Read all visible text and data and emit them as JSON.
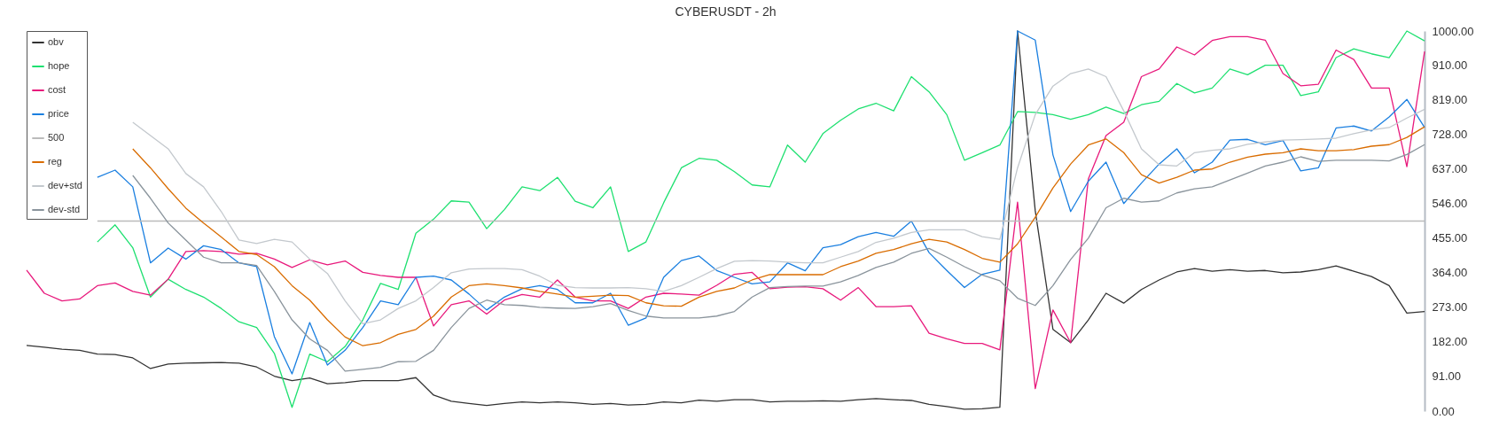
{
  "chart_data": {
    "type": "line",
    "title": "CYBERUSDT - 2h",
    "categories": [
      null,
      null,
      null,
      null,
      null,
      null,
      null,
      null,
      null,
      null,
      null,
      null,
      null,
      null,
      null,
      null,
      null,
      null,
      null,
      null,
      null,
      null,
      null,
      null,
      null,
      null,
      null,
      null,
      null,
      null,
      null,
      null,
      null,
      null,
      null,
      null,
      null,
      null,
      null,
      null,
      null,
      null,
      null,
      null,
      null,
      null,
      null,
      null,
      null,
      null,
      null,
      null,
      null,
      null,
      null,
      null,
      null,
      null,
      null,
      null,
      null,
      null,
      null,
      null,
      null,
      null,
      null,
      null,
      null,
      null,
      null,
      null,
      null,
      null,
      null,
      null,
      null,
      null,
      null,
      null
    ],
    "ylim": [
      0,
      1000
    ],
    "yticks": [
      {
        "value": 0,
        "label": "0.00"
      },
      {
        "value": 91,
        "label": "91.00"
      },
      {
        "value": 182,
        "label": "182.00"
      },
      {
        "value": 273,
        "label": "273.00"
      },
      {
        "value": 364,
        "label": "364.00"
      },
      {
        "value": 455,
        "label": "455.00"
      },
      {
        "value": 546,
        "label": "546.00"
      },
      {
        "value": 637,
        "label": "637.00"
      },
      {
        "value": 728,
        "label": "728.00"
      },
      {
        "value": 819,
        "label": "819.00"
      },
      {
        "value": 910,
        "label": "910.00"
      },
      {
        "value": 1000,
        "label": "1000.00"
      }
    ],
    "tick_labels": "y",
    "grid": false,
    "legend": "top left",
    "marker": "none",
    "line_style": "solid",
    "series": [
      {
        "name": "obv",
        "color": "#333333",
        "values": [
          173,
          168,
          163,
          160,
          150,
          149,
          140,
          112,
          124,
          126,
          127,
          128,
          126,
          116,
          92,
          80,
          87,
          72,
          75,
          80,
          80,
          80,
          88,
          42,
          26,
          20,
          15,
          20,
          24,
          22,
          24,
          22,
          18,
          20,
          16,
          18,
          24,
          22,
          29,
          26,
          30,
          30,
          24,
          26,
          26,
          27,
          26,
          30,
          33,
          30,
          28,
          18,
          12,
          5,
          6,
          10,
          1000,
          527,
          215,
          180,
          240,
          310,
          284,
          320,
          345,
          366,
          375,
          368,
          372,
          368,
          370,
          364,
          366,
          372,
          382,
          368,
          354,
          330,
          258,
          262
        ]
      },
      {
        "name": "hope",
        "color": "#1ee070",
        "values": [
          null,
          null,
          null,
          null,
          445,
          490,
          430,
          300,
          347,
          320,
          300,
          270,
          235,
          220,
          152,
          10,
          150,
          130,
          170,
          240,
          336,
          320,
          468,
          505,
          553,
          550,
          480,
          530,
          590,
          580,
          615,
          552,
          535,
          590,
          420,
          445,
          548,
          640,
          665,
          660,
          630,
          595,
          590,
          700,
          655,
          730,
          765,
          795,
          810,
          790,
          880,
          840,
          780,
          660,
          680,
          700,
          788,
          786,
          780,
          768,
          780,
          800,
          783,
          806,
          815,
          862,
          837,
          850,
          900,
          885,
          910,
          910,
          830,
          840,
          930,
          953,
          940,
          930,
          1000,
          974
        ]
      },
      {
        "name": "cost",
        "color": "#e8197c",
        "values": [
          371,
          310,
          290,
          295,
          330,
          337,
          315,
          305,
          347,
          420,
          422,
          420,
          413,
          415,
          400,
          378,
          398,
          385,
          395,
          365,
          357,
          352,
          352,
          224,
          280,
          290,
          255,
          292,
          307,
          300,
          345,
          300,
          290,
          290,
          270,
          300,
          310,
          308,
          305,
          331,
          360,
          365,
          322,
          326,
          327,
          322,
          292,
          325,
          275,
          275,
          277,
          205,
          190,
          178,
          178,
          161,
          550,
          59,
          266,
          180,
          611,
          725,
          760,
          880,
          900,
          958,
          937,
          975,
          985,
          985,
          976,
          888,
          856,
          860,
          950,
          925,
          850,
          850,
          643,
          946
        ]
      },
      {
        "name": "price",
        "color": "#1a7fe0",
        "values": [
          null,
          null,
          null,
          null,
          615,
          634,
          590,
          390,
          429,
          400,
          435,
          425,
          390,
          380,
          196,
          98,
          233,
          121,
          160,
          220,
          290,
          280,
          352,
          355,
          345,
          308,
          266,
          300,
          322,
          330,
          320,
          285,
          285,
          310,
          226,
          245,
          352,
          396,
          408,
          370,
          352,
          335,
          340,
          390,
          369,
          430,
          438,
          459,
          470,
          460,
          500,
          417,
          370,
          325,
          360,
          371,
          1000,
          976,
          674,
          525,
          605,
          655,
          546,
          600,
          650,
          690,
          627,
          655,
          713,
          715,
          701,
          712,
          632,
          640,
          745,
          750,
          737,
          774,
          820,
          746
        ]
      },
      {
        "name": "500",
        "color": "#bbbbbb",
        "values": [
          null,
          null,
          null,
          null,
          500,
          500,
          500,
          500,
          500,
          500,
          500,
          500,
          500,
          500,
          500,
          500,
          500,
          500,
          500,
          500,
          500,
          500,
          500,
          500,
          500,
          500,
          500,
          500,
          500,
          500,
          500,
          500,
          500,
          500,
          500,
          500,
          500,
          500,
          500,
          500,
          500,
          500,
          500,
          500,
          500,
          500,
          500,
          500,
          500,
          500,
          500,
          500,
          500,
          500,
          500,
          500,
          500,
          500,
          500,
          500,
          500,
          500,
          500,
          500,
          500,
          500,
          500,
          500,
          500,
          500,
          500,
          500,
          500,
          500,
          500,
          500,
          500,
          500,
          500,
          500
        ]
      },
      {
        "name": "reg",
        "color": "#d96c00",
        "values": [
          null,
          null,
          null,
          null,
          null,
          null,
          690,
          640,
          585,
          534,
          495,
          458,
          420,
          412,
          380,
          330,
          292,
          240,
          195,
          172,
          180,
          202,
          215,
          250,
          300,
          330,
          335,
          330,
          324,
          315,
          308,
          300,
          302,
          305,
          304,
          285,
          277,
          276,
          300,
          315,
          324,
          345,
          359,
          359,
          359,
          359,
          380,
          395,
          415,
          425,
          440,
          452,
          445,
          425,
          402,
          392,
          440,
          510,
          587,
          650,
          700,
          716,
          680,
          622,
          600,
          615,
          634,
          637,
          655,
          668,
          676,
          680,
          690,
          685,
          685,
          688,
          697,
          701,
          720,
          748
        ]
      },
      {
        "name": "dev+std",
        "color": "#c3c8cd",
        "values": [
          null,
          null,
          null,
          null,
          null,
          null,
          760,
          725,
          690,
          625,
          590,
          525,
          450,
          441,
          452,
          445,
          400,
          362,
          290,
          230,
          240,
          270,
          290,
          325,
          364,
          374,
          375,
          375,
          372,
          355,
          331,
          325,
          324,
          324,
          325,
          322,
          315,
          330,
          352,
          375,
          394,
          396,
          395,
          392,
          390,
          390,
          405,
          420,
          444,
          455,
          470,
          477,
          477,
          477,
          459,
          452,
          640,
          780,
          855,
          888,
          900,
          880,
          790,
          690,
          648,
          645,
          680,
          686,
          690,
          702,
          708,
          713,
          714,
          716,
          718,
          730,
          740,
          746,
          771,
          794
        ]
      },
      {
        "name": "dev-std",
        "color": "#8a949c",
        "values": [
          null,
          null,
          null,
          null,
          null,
          null,
          620,
          560,
          495,
          450,
          405,
          390,
          390,
          383,
          315,
          240,
          190,
          160,
          105,
          110,
          115,
          130,
          131,
          160,
          220,
          270,
          292,
          280,
          278,
          273,
          271,
          270,
          275,
          283,
          265,
          250,
          245,
          245,
          245,
          250,
          262,
          300,
          325,
          328,
          329,
          329,
          340,
          357,
          378,
          392,
          415,
          428,
          405,
          380,
          358,
          343,
          297,
          278,
          330,
          399,
          455,
          535,
          560,
          550,
          553,
          574,
          585,
          590,
          608,
          626,
          645,
          655,
          669,
          657,
          660,
          660,
          660,
          658,
          675,
          701
        ]
      }
    ]
  }
}
